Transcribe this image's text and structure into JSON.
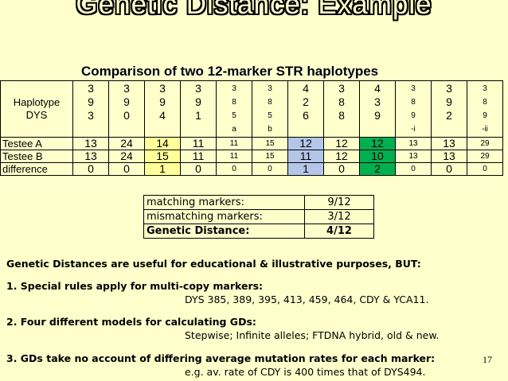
{
  "title": "Genetic  Distance:  Example",
  "subtitle": "Comparison of two 12-marker STR haplotypes",
  "table": {
    "header_label": [
      "Haplotype",
      "DYS"
    ],
    "markers": [
      {
        "lines": [
          "3",
          "9",
          "3",
          ""
        ],
        "size": "big"
      },
      {
        "lines": [
          "3",
          "9",
          "0",
          ""
        ],
        "size": "big"
      },
      {
        "lines": [
          "3",
          "9",
          "4",
          ""
        ],
        "size": "big"
      },
      {
        "lines": [
          "3",
          "9",
          "1",
          ""
        ],
        "size": "big"
      },
      {
        "lines": [
          "3",
          "8",
          "5",
          "a"
        ],
        "size": "small"
      },
      {
        "lines": [
          "3",
          "8",
          "5",
          "b"
        ],
        "size": "small"
      },
      {
        "lines": [
          "4",
          "2",
          "6",
          ""
        ],
        "size": "big"
      },
      {
        "lines": [
          "3",
          "8",
          "8",
          ""
        ],
        "size": "big"
      },
      {
        "lines": [
          "4",
          "3",
          "9",
          ""
        ],
        "size": "big"
      },
      {
        "lines": [
          "3",
          "8",
          "9",
          "-i"
        ],
        "size": "small"
      },
      {
        "lines": [
          "3",
          "9",
          "2",
          ""
        ],
        "size": "big"
      },
      {
        "lines": [
          "3",
          "8",
          "9",
          "-ii"
        ],
        "size": "small"
      }
    ],
    "rows": [
      {
        "label": "Testee A",
        "values": [
          "13",
          "24",
          "14",
          "11",
          "11",
          "15",
          "12",
          "12",
          "12",
          "13",
          "13",
          "29"
        ]
      },
      {
        "label": "Testee B",
        "values": [
          "13",
          "24",
          "15",
          "11",
          "11",
          "15",
          "11",
          "12",
          "10",
          "13",
          "13",
          "29"
        ]
      },
      {
        "label": "difference",
        "values": [
          "0",
          "0",
          "1",
          "0",
          "0",
          "0",
          "1",
          "0",
          "2",
          "0",
          "0",
          "0"
        ]
      }
    ],
    "highlight_colors": {
      "yellow": "#ffff99",
      "blue": "#b4c6e7",
      "green": "#00b050"
    }
  },
  "summary": [
    {
      "label": "matching markers:",
      "value": "9/12",
      "bold": false
    },
    {
      "label": "mismatching markers:",
      "value": "3/12",
      "bold": false
    },
    {
      "label": "Genetic Distance:",
      "value": "4/12",
      "bold": true
    }
  ],
  "notes": {
    "intro": "Genetic Distances are useful for educational & illustrative purposes, BUT:",
    "p1": "1.  Special rules apply for multi-copy markers:",
    "p1_detail": "DYS 385, 389, 395, 413, 459, 464, CDY & YCA11.",
    "p2": "2.  Four different models for calculating GDs:",
    "p2_detail": "Stepwise; Infinite alleles; FTDNA hybrid, old & new.",
    "p3": "3.  GDs take no account of differing average mutation rates for each marker:",
    "p3_detail": "e.g. av. rate of CDY is 400 times that of DYS494."
  },
  "page_number": "17"
}
